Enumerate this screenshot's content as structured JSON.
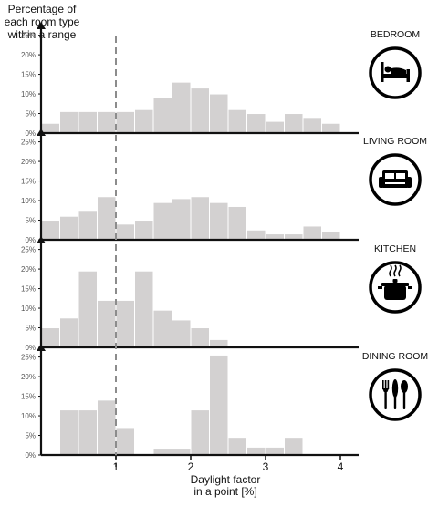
{
  "chart_data": {
    "type": "bar",
    "ylabel": "Percentage of each room type within a range",
    "ylabel_lines": [
      "Percentage of",
      "each room type",
      "within a range"
    ],
    "xlabel": "Daylight factor in a point [%]",
    "xlabel_lines": [
      "Daylight factor",
      "in a point [%]"
    ],
    "x_ticks": [
      "1",
      "2",
      "3",
      "4"
    ],
    "y_ticks": [
      "0%",
      "5%",
      "10%",
      "15%",
      "20%",
      "25%"
    ],
    "ylim": [
      0,
      27
    ],
    "xlim": [
      0,
      4.1
    ],
    "bin_width": 0.25,
    "reference_line_x": 1,
    "panels": [
      {
        "name": "BEDROOM",
        "icon": "bed-icon",
        "bin_starts": [
          0,
          0.25,
          0.5,
          0.75,
          1,
          1.25,
          1.5,
          1.75,
          2,
          2.25,
          2.5,
          2.75,
          3,
          3.25,
          3.5,
          3.75
        ],
        "values": [
          2.5,
          5.5,
          5.5,
          5.5,
          5.5,
          6,
          9,
          13,
          11.5,
          10,
          6,
          5,
          3,
          5,
          4,
          2.5
        ]
      },
      {
        "name": "LIVING ROOM",
        "icon": "sofa-icon",
        "bin_starts": [
          0,
          0.25,
          0.5,
          0.75,
          1,
          1.25,
          1.5,
          1.75,
          2,
          2.25,
          2.5,
          2.75,
          3,
          3.25,
          3.5,
          3.75
        ],
        "values": [
          5,
          6,
          7.5,
          11,
          4,
          5,
          9.5,
          10.5,
          11,
          9.5,
          8.5,
          2.5,
          1.5,
          1.5,
          3.5,
          2
        ]
      },
      {
        "name": "KITCHEN",
        "icon": "pot-icon",
        "bin_starts": [
          0,
          0.25,
          0.5,
          0.75,
          1,
          1.25,
          1.5,
          1.75,
          2,
          2.25
        ],
        "values": [
          5,
          7.5,
          19.5,
          12,
          12,
          19.5,
          9.5,
          7,
          5,
          2
        ]
      },
      {
        "name": "DINING ROOM",
        "icon": "cutlery-icon",
        "bin_starts": [
          0.25,
          0.5,
          0.75,
          1,
          1.5,
          1.75,
          2,
          2.25,
          2.5,
          2.75,
          3,
          3.25
        ],
        "values": [
          11.5,
          11.5,
          14,
          7,
          1.5,
          1.5,
          11.5,
          25.5,
          4.5,
          2,
          2,
          4.5
        ]
      }
    ],
    "colors": {
      "bar_fill": "#d3d1d1",
      "bar_stroke": "#ffffff",
      "axis": "#111111",
      "reference_line": "#8c8c8c",
      "tick_label": "#555555"
    }
  }
}
